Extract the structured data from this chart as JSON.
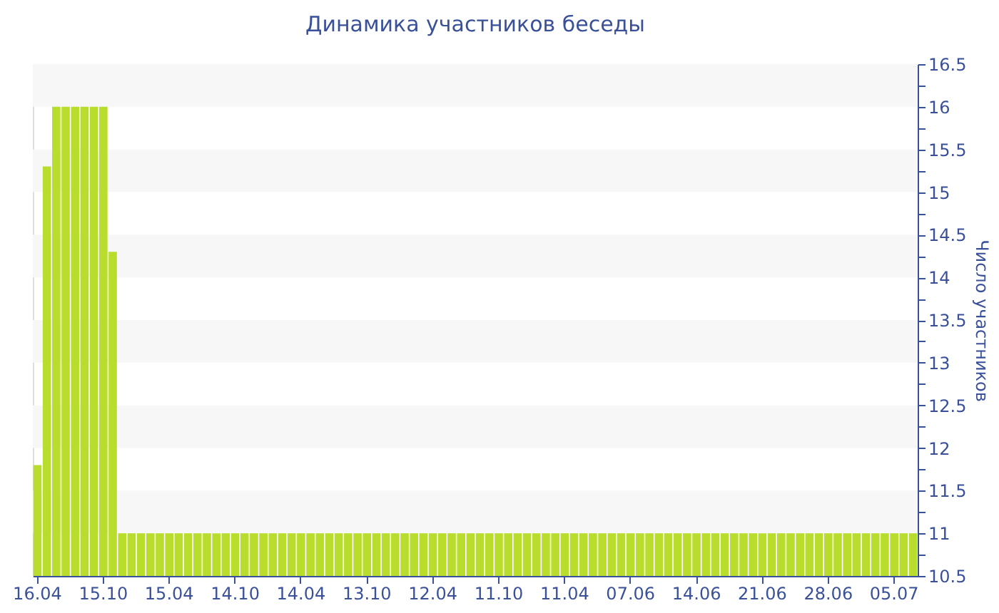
{
  "chart_data": {
    "type": "bar",
    "title": "Динамика участников беседы",
    "ylabel": "Число участников",
    "categories": [
      "16.04",
      null,
      null,
      null,
      null,
      null,
      null,
      "15.10",
      null,
      null,
      null,
      null,
      null,
      null,
      "15.04",
      null,
      null,
      null,
      null,
      null,
      null,
      "14.10",
      null,
      null,
      null,
      null,
      null,
      null,
      "14.04",
      null,
      null,
      null,
      null,
      null,
      null,
      "13.10",
      null,
      null,
      null,
      null,
      null,
      null,
      "12.04",
      null,
      null,
      null,
      null,
      null,
      null,
      "11.10",
      null,
      null,
      null,
      null,
      null,
      null,
      "11.04",
      null,
      null,
      null,
      null,
      null,
      null,
      "07.06",
      null,
      null,
      null,
      null,
      null,
      null,
      "14.06",
      null,
      null,
      null,
      null,
      null,
      null,
      "21.06",
      null,
      null,
      null,
      null,
      null,
      null,
      "28.06",
      null,
      null,
      null,
      null,
      null,
      null,
      "05.07",
      null,
      null
    ],
    "values": [
      11.8,
      15.3,
      16,
      16,
      16,
      16,
      16,
      16,
      14.3,
      11,
      11,
      11,
      11,
      11,
      11,
      11,
      11,
      11,
      11,
      11,
      11,
      11,
      11,
      11,
      11,
      11,
      11,
      11,
      11,
      11,
      11,
      11,
      11,
      11,
      11,
      11,
      11,
      11,
      11,
      11,
      11,
      11,
      11,
      11,
      11,
      11,
      11,
      11,
      11,
      11,
      11,
      11,
      11,
      11,
      11,
      11,
      11,
      11,
      11,
      11,
      11,
      11,
      11,
      11,
      11,
      11,
      11,
      11,
      11,
      11,
      11,
      11,
      11,
      11,
      11,
      11,
      11,
      11,
      11,
      11,
      11,
      11,
      11,
      11,
      11,
      11,
      11,
      11,
      11,
      11,
      11,
      11,
      11,
      11
    ],
    "color": "#b8dd2c",
    "ylim": [
      10.5,
      16.5
    ],
    "yticks": [
      10.5,
      {
        "value": 10.75,
        "label": null
      },
      11,
      {
        "value": 11.25,
        "label": null
      },
      11.5,
      {
        "value": 11.75,
        "label": null
      },
      12,
      {
        "value": 12.25,
        "label": null
      },
      12.5,
      {
        "value": 12.75,
        "label": null
      },
      13,
      {
        "value": 13.25,
        "label": null
      },
      13.5,
      {
        "value": 13.75,
        "label": null
      },
      14,
      {
        "value": 14.25,
        "label": null
      },
      14.5,
      {
        "value": 14.75,
        "label": null
      },
      15,
      {
        "value": 15.25,
        "label": null
      },
      15.5,
      {
        "value": 15.75,
        "label": null
      },
      16,
      {
        "value": 16.25,
        "label": null
      },
      16.5
    ],
    "bands": [
      {
        "axis": "y",
        "from": 11,
        "to": 11.5,
        "color": "#f7f7f7"
      },
      {
        "axis": "y",
        "from": 12,
        "to": 12.5,
        "color": "#f7f7f7"
      },
      {
        "axis": "y",
        "from": 13,
        "to": 13.5,
        "color": "#f7f7f7"
      },
      {
        "axis": "y",
        "from": 14,
        "to": 14.5,
        "color": "#f7f7f7"
      },
      {
        "axis": "y",
        "from": 15,
        "to": 15.5,
        "color": "#f7f7f7"
      },
      {
        "axis": "y",
        "from": 16,
        "to": 16.5,
        "color": "#f7f7f7"
      }
    ],
    "grid": false
  }
}
